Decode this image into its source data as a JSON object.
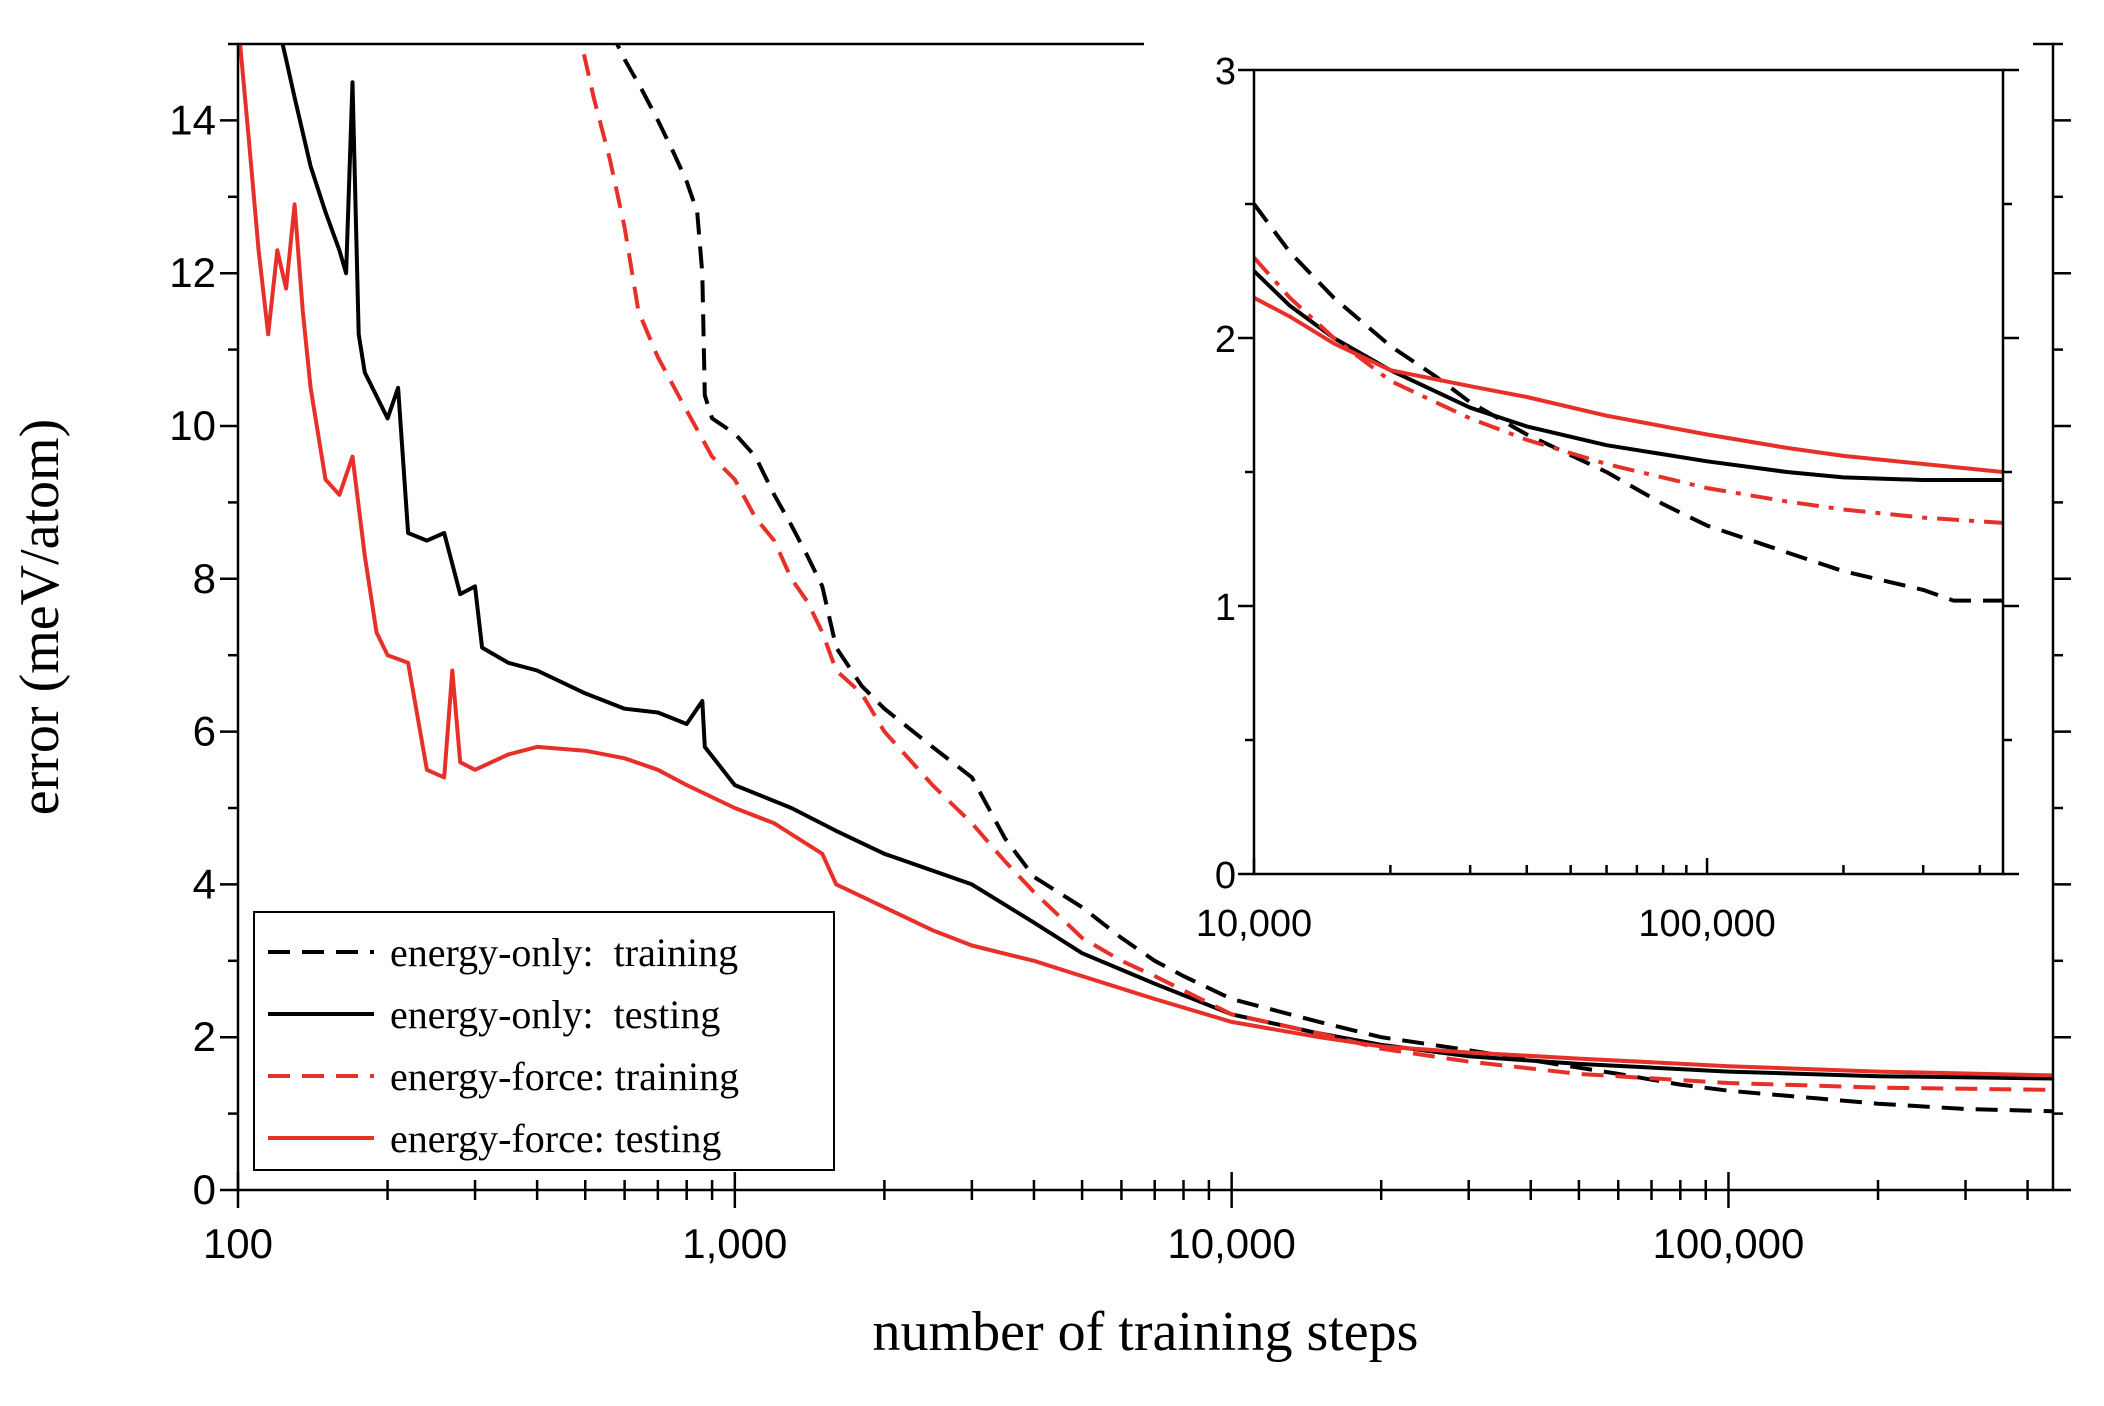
{
  "chart_data": [
    {
      "type": "line",
      "title": "",
      "xlabel": "number of training steps",
      "ylabel": "error (meV/atom)",
      "xscale": "log",
      "xlim": [
        100,
        450000
      ],
      "ylim": [
        0,
        15
      ],
      "xticks": [
        100,
        1000,
        10000,
        100000
      ],
      "xtick_labels": [
        "100",
        "1,000",
        "10,000",
        "100,000"
      ],
      "yticks": [
        0,
        2,
        4,
        6,
        8,
        10,
        12,
        14
      ],
      "ytick_labels": [
        "0",
        "2",
        "4",
        "6",
        "8",
        "10",
        "12",
        "14"
      ],
      "legend_position": "bottom-left",
      "grid": false,
      "series": [
        {
          "name": "energy-only:  training",
          "color": "#000000",
          "dash": "dashed",
          "points": [
            [
              560,
              15.2
            ],
            [
              600,
              14.8
            ],
            [
              650,
              14.4
            ],
            [
              700,
              14.0
            ],
            [
              750,
              13.6
            ],
            [
              800,
              13.2
            ],
            [
              840,
              12.8
            ],
            [
              860,
              12.0
            ],
            [
              870,
              10.4
            ],
            [
              900,
              10.1
            ],
            [
              1000,
              9.9
            ],
            [
              1100,
              9.6
            ],
            [
              1200,
              9.1
            ],
            [
              1300,
              8.7
            ],
            [
              1400,
              8.3
            ],
            [
              1500,
              7.9
            ],
            [
              1600,
              7.1
            ],
            [
              1800,
              6.6
            ],
            [
              2000,
              6.3
            ],
            [
              2500,
              5.8
            ],
            [
              3000,
              5.4
            ],
            [
              3500,
              4.6
            ],
            [
              4000,
              4.1
            ],
            [
              5000,
              3.7
            ],
            [
              6000,
              3.3
            ],
            [
              7000,
              3.0
            ],
            [
              8000,
              2.8
            ],
            [
              10000,
              2.5
            ],
            [
              15000,
              2.2
            ],
            [
              20000,
              2.0
            ],
            [
              30000,
              1.83
            ],
            [
              40000,
              1.7
            ],
            [
              60000,
              1.52
            ],
            [
              80000,
              1.38
            ],
            [
              100000,
              1.3
            ],
            [
              150000,
              1.2
            ],
            [
              200000,
              1.13
            ],
            [
              300000,
              1.06
            ],
            [
              450000,
              1.03
            ]
          ]
        },
        {
          "name": "energy-only:  testing",
          "color": "#000000",
          "dash": "solid",
          "points": [
            [
              120,
              15.3
            ],
            [
              125,
              14.8
            ],
            [
              130,
              14.3
            ],
            [
              140,
              13.4
            ],
            [
              150,
              12.8
            ],
            [
              160,
              12.3
            ],
            [
              165,
              12.0
            ],
            [
              170,
              14.5
            ],
            [
              175,
              11.2
            ],
            [
              180,
              10.7
            ],
            [
              200,
              10.1
            ],
            [
              210,
              10.5
            ],
            [
              220,
              8.6
            ],
            [
              240,
              8.5
            ],
            [
              260,
              8.6
            ],
            [
              280,
              7.8
            ],
            [
              300,
              7.9
            ],
            [
              310,
              7.1
            ],
            [
              350,
              6.9
            ],
            [
              400,
              6.8
            ],
            [
              500,
              6.5
            ],
            [
              600,
              6.3
            ],
            [
              700,
              6.25
            ],
            [
              800,
              6.1
            ],
            [
              860,
              6.4
            ],
            [
              870,
              5.8
            ],
            [
              1000,
              5.3
            ],
            [
              1300,
              5.0
            ],
            [
              1600,
              4.7
            ],
            [
              2000,
              4.4
            ],
            [
              3000,
              4.0
            ],
            [
              4000,
              3.5
            ],
            [
              5000,
              3.1
            ],
            [
              7000,
              2.7
            ],
            [
              10000,
              2.3
            ],
            [
              15000,
              2.05
            ],
            [
              20000,
              1.9
            ],
            [
              30000,
              1.75
            ],
            [
              50000,
              1.65
            ],
            [
              100000,
              1.55
            ],
            [
              200000,
              1.49
            ],
            [
              450000,
              1.46
            ]
          ]
        },
        {
          "name": "energy-force: training",
          "color": "#e8302a",
          "dash": "dashed",
          "points": [
            [
              480,
              15.3
            ],
            [
              520,
              14.3
            ],
            [
              560,
              13.5
            ],
            [
              600,
              12.6
            ],
            [
              640,
              11.5
            ],
            [
              700,
              10.9
            ],
            [
              800,
              10.2
            ],
            [
              900,
              9.6
            ],
            [
              1000,
              9.3
            ],
            [
              1100,
              8.8
            ],
            [
              1200,
              8.5
            ],
            [
              1300,
              8.0
            ],
            [
              1400,
              7.7
            ],
            [
              1500,
              7.3
            ],
            [
              1600,
              6.8
            ],
            [
              1800,
              6.5
            ],
            [
              2000,
              6.0
            ],
            [
              2500,
              5.3
            ],
            [
              3000,
              4.8
            ],
            [
              3500,
              4.3
            ],
            [
              4000,
              3.9
            ],
            [
              5000,
              3.3
            ],
            [
              6000,
              3.0
            ],
            [
              7000,
              2.8
            ],
            [
              10000,
              2.3
            ],
            [
              15000,
              2.05
            ],
            [
              20000,
              1.85
            ],
            [
              30000,
              1.68
            ],
            [
              50000,
              1.52
            ],
            [
              100000,
              1.4
            ],
            [
              200000,
              1.34
            ],
            [
              450000,
              1.31
            ]
          ]
        },
        {
          "name": "energy-force: testing",
          "color": "#e8302a",
          "dash": "solid",
          "points": [
            [
              100,
              15.3
            ],
            [
              105,
              13.8
            ],
            [
              110,
              12.3
            ],
            [
              115,
              11.2
            ],
            [
              120,
              12.3
            ],
            [
              125,
              11.8
            ],
            [
              130,
              12.9
            ],
            [
              135,
              11.5
            ],
            [
              140,
              10.5
            ],
            [
              150,
              9.3
            ],
            [
              160,
              9.1
            ],
            [
              170,
              9.6
            ],
            [
              180,
              8.3
            ],
            [
              190,
              7.3
            ],
            [
              200,
              7.0
            ],
            [
              220,
              6.9
            ],
            [
              240,
              5.5
            ],
            [
              260,
              5.4
            ],
            [
              270,
              6.8
            ],
            [
              280,
              5.6
            ],
            [
              300,
              5.5
            ],
            [
              350,
              5.7
            ],
            [
              400,
              5.8
            ],
            [
              500,
              5.75
            ],
            [
              600,
              5.65
            ],
            [
              700,
              5.5
            ],
            [
              800,
              5.3
            ],
            [
              1000,
              5.0
            ],
            [
              1200,
              4.8
            ],
            [
              1500,
              4.4
            ],
            [
              1600,
              4.0
            ],
            [
              2000,
              3.7
            ],
            [
              2500,
              3.4
            ],
            [
              3000,
              3.2
            ],
            [
              4000,
              3.0
            ],
            [
              5000,
              2.8
            ],
            [
              7000,
              2.5
            ],
            [
              10000,
              2.2
            ],
            [
              15000,
              2.0
            ],
            [
              20000,
              1.88
            ],
            [
              30000,
              1.8
            ],
            [
              50000,
              1.72
            ],
            [
              100000,
              1.62
            ],
            [
              200000,
              1.55
            ],
            [
              450000,
              1.5
            ]
          ]
        }
      ]
    },
    {
      "type": "line",
      "title": "",
      "xlabel": "",
      "ylabel": "",
      "xscale": "log",
      "xlim": [
        10000,
        450000
      ],
      "ylim": [
        0,
        3
      ],
      "xticks": [
        10000,
        100000
      ],
      "xtick_labels": [
        "10,000",
        "100,000"
      ],
      "yticks": [
        0,
        1,
        2,
        3
      ],
      "ytick_labels": [
        "0",
        "1",
        "2",
        "3"
      ],
      "grid": false,
      "series": [
        {
          "color": "#000000",
          "dash": "dashed",
          "points": [
            [
              10000,
              2.5
            ],
            [
              12000,
              2.32
            ],
            [
              15000,
              2.15
            ],
            [
              20000,
              1.97
            ],
            [
              25000,
              1.86
            ],
            [
              30000,
              1.76
            ],
            [
              40000,
              1.64
            ],
            [
              60000,
              1.5
            ],
            [
              80000,
              1.38
            ],
            [
              100000,
              1.3
            ],
            [
              150000,
              1.2
            ],
            [
              200000,
              1.13
            ],
            [
              300000,
              1.06
            ],
            [
              350000,
              1.02
            ],
            [
              450000,
              1.02
            ]
          ]
        },
        {
          "color": "#000000",
          "dash": "solid",
          "points": [
            [
              10000,
              2.25
            ],
            [
              12000,
              2.12
            ],
            [
              15000,
              2.0
            ],
            [
              20000,
              1.88
            ],
            [
              30000,
              1.74
            ],
            [
              40000,
              1.67
            ],
            [
              60000,
              1.6
            ],
            [
              100000,
              1.54
            ],
            [
              150000,
              1.5
            ],
            [
              200000,
              1.48
            ],
            [
              300000,
              1.47
            ],
            [
              450000,
              1.47
            ]
          ]
        },
        {
          "color": "#e8302a",
          "dash": "dashdot",
          "points": [
            [
              10000,
              2.3
            ],
            [
              12000,
              2.15
            ],
            [
              15000,
              2.0
            ],
            [
              20000,
              1.84
            ],
            [
              30000,
              1.7
            ],
            [
              40000,
              1.62
            ],
            [
              60000,
              1.53
            ],
            [
              100000,
              1.44
            ],
            [
              150000,
              1.39
            ],
            [
              200000,
              1.36
            ],
            [
              300000,
              1.33
            ],
            [
              450000,
              1.31
            ]
          ]
        },
        {
          "color": "#e8302a",
          "dash": "solid",
          "points": [
            [
              10000,
              2.15
            ],
            [
              12000,
              2.08
            ],
            [
              15000,
              1.98
            ],
            [
              20000,
              1.88
            ],
            [
              30000,
              1.82
            ],
            [
              40000,
              1.78
            ],
            [
              60000,
              1.71
            ],
            [
              100000,
              1.64
            ],
            [
              150000,
              1.59
            ],
            [
              200000,
              1.56
            ],
            [
              300000,
              1.53
            ],
            [
              450000,
              1.5
            ]
          ]
        }
      ]
    }
  ]
}
